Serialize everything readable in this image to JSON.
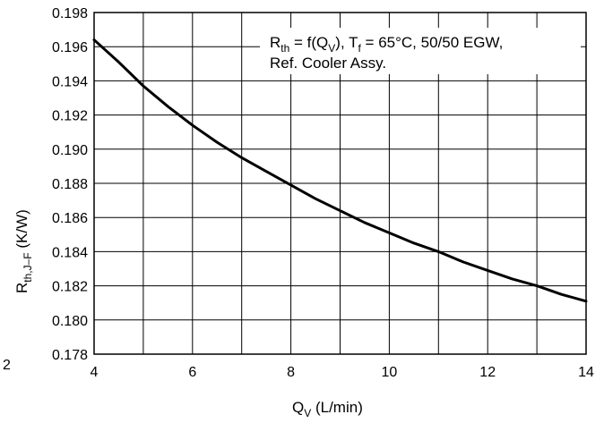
{
  "chart_data": {
    "type": "line",
    "xlabel": "Q",
    "xlabel_sub": "V",
    "xlabel_unit": " (L/min)",
    "ylabel": "R",
    "ylabel_sub": "th,J–F",
    "ylabel_unit": " (K/W)",
    "xlim": [
      4,
      14
    ],
    "ylim": [
      0.178,
      0.198
    ],
    "x_ticks": [
      4,
      6,
      8,
      10,
      12,
      14
    ],
    "x_tick_labels": [
      "4",
      "6",
      "8",
      "10",
      "12",
      "14"
    ],
    "x_minor_grid_step": 1,
    "y_ticks": [
      0.178,
      0.18,
      0.182,
      0.184,
      0.186,
      0.188,
      0.19,
      0.192,
      0.194,
      0.196,
      0.198
    ],
    "y_tick_labels": [
      "0.178",
      "0.180",
      "0.182",
      "0.184",
      "0.186",
      "0.188",
      "0.190",
      "0.192",
      "0.194",
      "0.196",
      "0.198"
    ],
    "grid": true,
    "stray_label": "2",
    "legend": {
      "placement": "top-right",
      "line1": [
        {
          "text": "R",
          "style": "normal"
        },
        {
          "text": "th",
          "style": "sub"
        },
        {
          "text": " = f(Q",
          "style": "normal"
        },
        {
          "text": "V",
          "style": "sub"
        },
        {
          "text": "), T",
          "style": "normal"
        },
        {
          "text": "f",
          "style": "sub"
        },
        {
          "text": " = 65°C, 50/50 EGW,",
          "style": "normal"
        }
      ],
      "line2": "Ref. Cooler Assy."
    },
    "series": [
      {
        "color": "#000000",
        "x": [
          4,
          4.5,
          5,
          5.5,
          6,
          6.5,
          7,
          7.5,
          8,
          8.5,
          9,
          9.5,
          10,
          10.5,
          11,
          11.5,
          12,
          12.5,
          13,
          13.5,
          14
        ],
        "y": [
          0.1964,
          0.1951,
          0.1937,
          0.1925,
          0.1914,
          0.1904,
          0.1895,
          0.1887,
          0.1879,
          0.1871,
          0.1864,
          0.1857,
          0.1851,
          0.1845,
          0.184,
          0.1834,
          0.1829,
          0.1824,
          0.182,
          0.1815,
          0.1811
        ]
      }
    ]
  }
}
